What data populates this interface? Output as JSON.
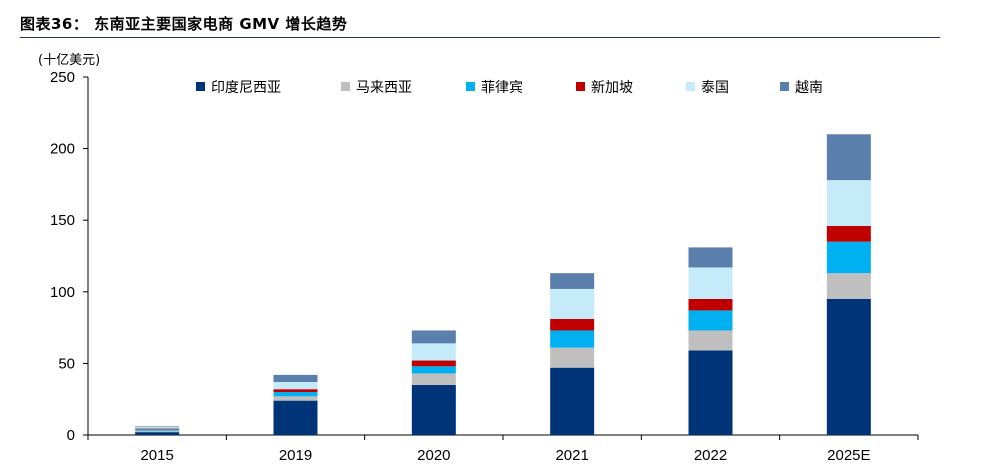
{
  "title": "图表36： 东南亚主要国家电商 GMV 增长趋势",
  "chart_data": {
    "type": "bar",
    "stacked": true,
    "unit_label": "(十亿美元)",
    "categories": [
      "2015",
      "2019",
      "2020",
      "2021",
      "2022",
      "2025E"
    ],
    "series": [
      {
        "name": "印度尼西亚",
        "color": "#003478",
        "values": [
          2,
          24,
          35,
          47,
          59,
          95
        ]
      },
      {
        "name": "马来西亚",
        "color": "#bfbfbf",
        "values": [
          1,
          3,
          8,
          14,
          14,
          18
        ]
      },
      {
        "name": "菲律宾",
        "color": "#00b0f0",
        "values": [
          1,
          3,
          5,
          12,
          14,
          22
        ]
      },
      {
        "name": "新加坡",
        "color": "#c00000",
        "values": [
          0.5,
          2,
          4,
          8,
          8,
          11
        ]
      },
      {
        "name": "泰国",
        "color": "#c5ebfa",
        "values": [
          1,
          5,
          12,
          21,
          22,
          32
        ]
      },
      {
        "name": "越南",
        "color": "#5b7fad",
        "values": [
          0.5,
          5,
          9,
          11,
          14,
          32
        ]
      }
    ],
    "ylim": [
      0,
      250
    ],
    "yticks": [
      0,
      50,
      100,
      150,
      200,
      250
    ],
    "grid": false,
    "legend_position": "top"
  }
}
